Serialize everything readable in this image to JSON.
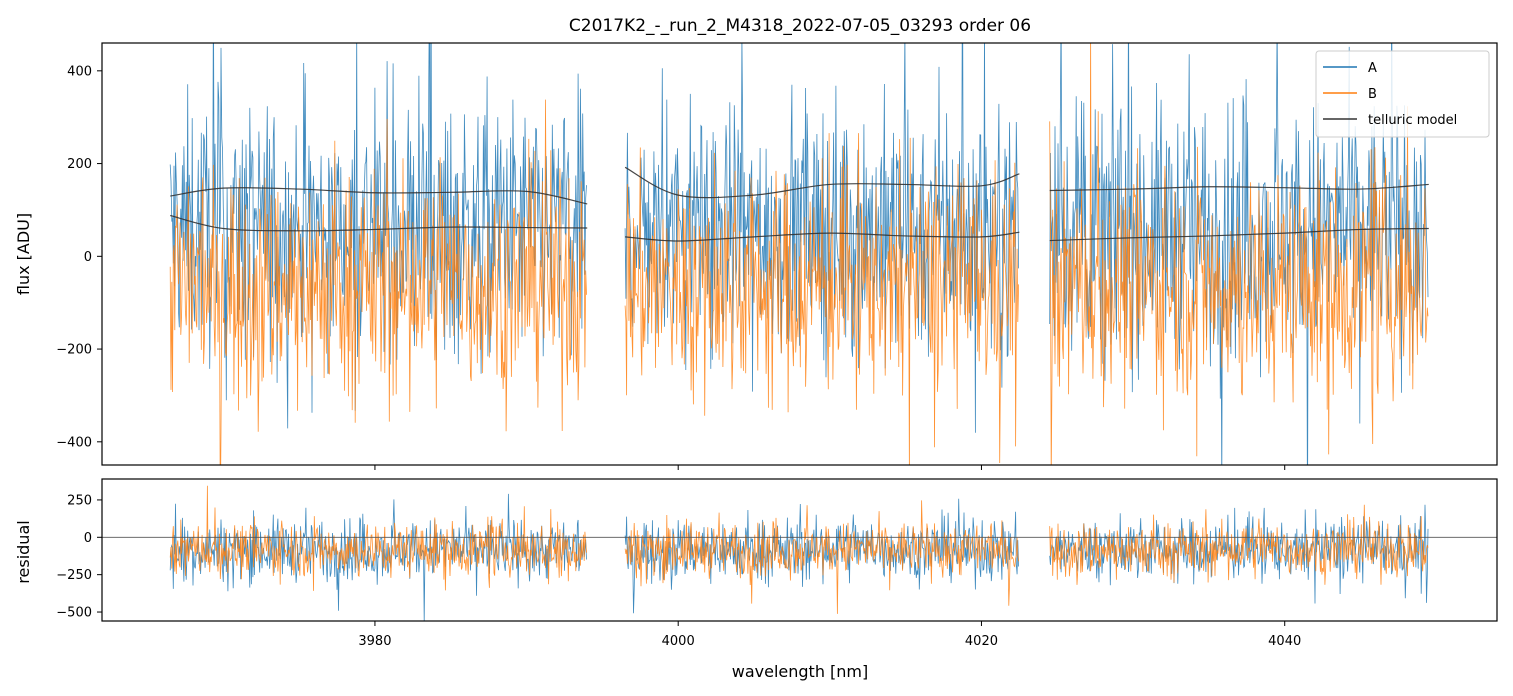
{
  "chart_data": [
    {
      "type": "line",
      "panel": "top",
      "title": "C2017K2_-_run_2_M4318_2022-07-05_03293  order 06",
      "xlabel": "",
      "ylabel": "flux [ADU]",
      "xlim": [
        3962,
        4054
      ],
      "ylim": [
        -450,
        460
      ],
      "yticks": [
        -400,
        -200,
        0,
        200,
        400
      ],
      "ytick_labels": [
        "−400",
        "−200",
        "0",
        "200",
        "400"
      ],
      "segments": [
        [
          3966.5,
          3994.0
        ],
        [
          3996.5,
          4022.5
        ],
        [
          4024.5,
          4049.5
        ]
      ],
      "legend": {
        "position": "top-right",
        "entries": [
          "A",
          "B",
          "telluric model"
        ]
      },
      "series": [
        {
          "name": "A",
          "color": "#1f77b4",
          "approx_mean": 60,
          "approx_spread": 230
        },
        {
          "name": "B",
          "color": "#ff7f0e",
          "approx_mean": -60,
          "approx_spread": 200
        },
        {
          "name": "telluric model",
          "color": "#333333",
          "curves": [
            {
              "x": [
                3966.5,
                3970,
                3975,
                3980,
                3985,
                3990,
                3994.0
              ],
              "y": [
                130,
                147,
                145,
                137,
                138,
                140,
                113
              ]
            },
            {
              "x": [
                3996.5,
                4000,
                4005,
                4010,
                4015,
                4020,
                4022.5
              ],
              "y": [
                192,
                132,
                132,
                155,
                155,
                152,
                178
              ]
            },
            {
              "x": [
                4024.5,
                4030,
                4035,
                4040,
                4045,
                4049.5
              ],
              "y": [
                142,
                145,
                150,
                148,
                145,
                155
              ]
            },
            {
              "x": [
                3966.5,
                3970,
                3975,
                3980,
                3985,
                3990,
                3994.0
              ],
              "y": [
                88,
                60,
                55,
                58,
                63,
                62,
                61
              ]
            },
            {
              "x": [
                3996.5,
                4000,
                4005,
                4010,
                4015,
                4020,
                4022.5
              ],
              "y": [
                42,
                33,
                42,
                50,
                44,
                42,
                52
              ]
            },
            {
              "x": [
                4024.5,
                4030,
                4035,
                4040,
                4045,
                4049.5
              ],
              "y": [
                34,
                40,
                44,
                50,
                58,
                60
              ]
            }
          ]
        }
      ]
    },
    {
      "type": "line",
      "panel": "bottom",
      "xlabel": "wavelength [nm]",
      "ylabel": "residual",
      "xlim": [
        3962,
        4054
      ],
      "ylim": [
        -560,
        390
      ],
      "xticks": [
        3980,
        4000,
        4020,
        4040
      ],
      "xtick_labels": [
        "3980",
        "4000",
        "4020",
        "4040"
      ],
      "yticks": [
        -500,
        -250,
        0,
        250
      ],
      "ytick_labels": [
        "−500",
        "−250",
        "0",
        "250"
      ],
      "zero_line": true,
      "series": [
        {
          "name": "A",
          "color": "#1f77b4",
          "approx_mean": -80,
          "approx_spread": 170
        },
        {
          "name": "B",
          "color": "#ff7f0e",
          "approx_mean": -80,
          "approx_spread": 150
        }
      ]
    }
  ]
}
